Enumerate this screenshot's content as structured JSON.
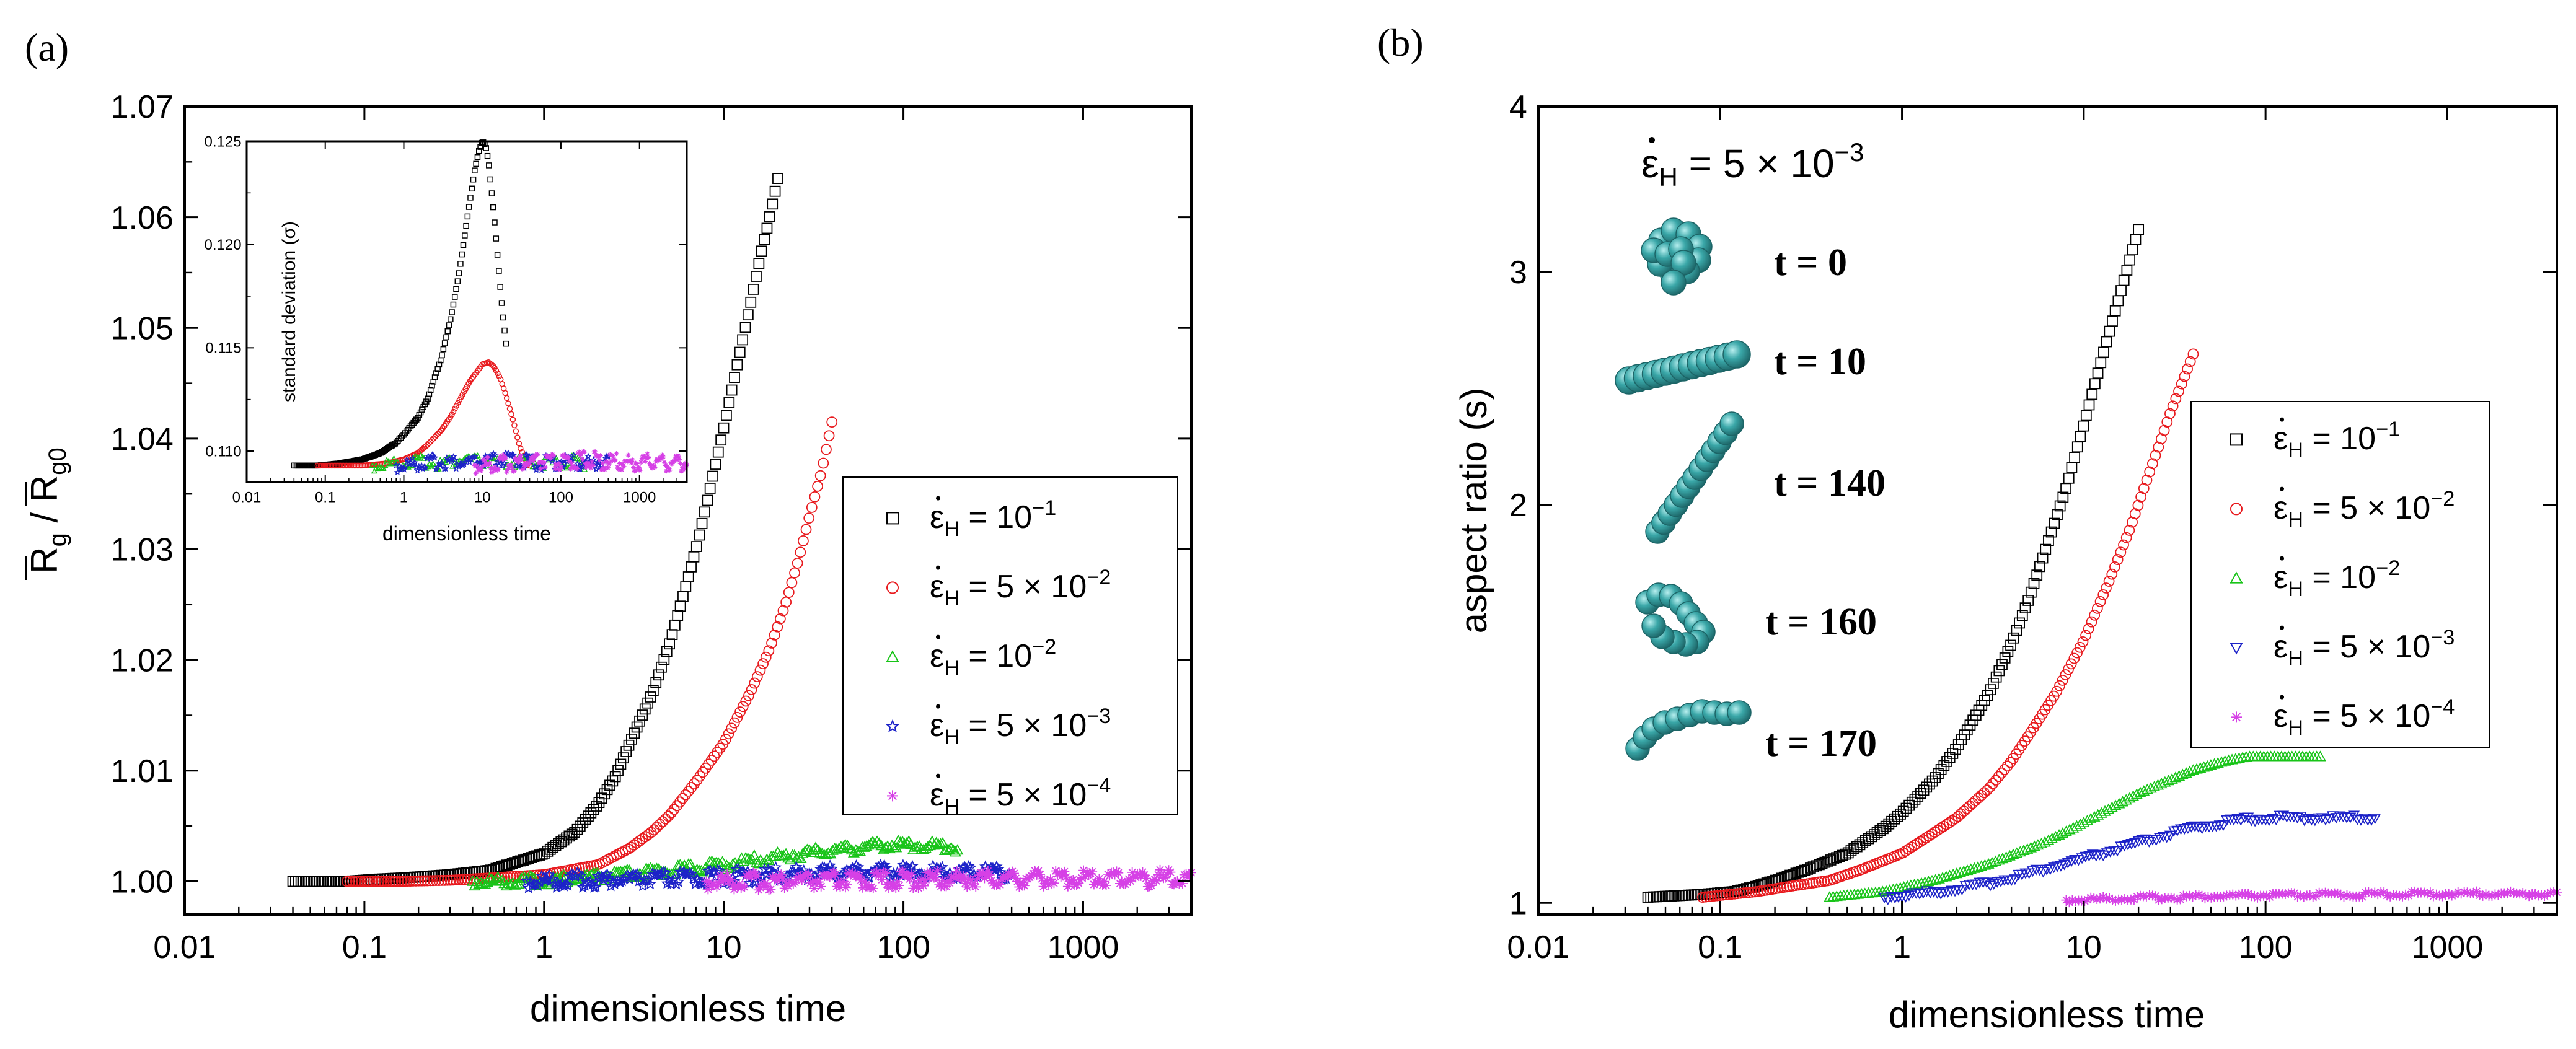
{
  "figure": {
    "panel_a_label": "(a)",
    "panel_b_label": "(b)"
  },
  "series_meta": [
    {
      "key": "e1",
      "color": "#000000",
      "marker": "square",
      "icon": "square-marker-icon"
    },
    {
      "key": "e2",
      "color": "#e8191d",
      "marker": "circle",
      "icon": "circle-marker-icon"
    },
    {
      "key": "e3",
      "color": "#19c419",
      "marker": "triangle",
      "icon": "triangle-marker-icon"
    },
    {
      "key": "e4",
      "color": "#1c22c8",
      "marker": "star",
      "icon": "star-marker-icon"
    },
    {
      "key": "e5",
      "color": "#d640e6",
      "marker": "asterisk",
      "icon": "asterisk-marker-icon"
    }
  ],
  "legend_entries": [
    {
      "prefix": "ε",
      "sub": "H",
      "mid": " = 10",
      "sup": "−1"
    },
    {
      "prefix": "ε",
      "sub": "H",
      "mid": " = 5 × 10",
      "sup": "−2"
    },
    {
      "prefix": "ε",
      "sub": "H",
      "mid": " = 10",
      "sup": "−2"
    },
    {
      "prefix": "ε",
      "sub": "H",
      "mid": " = 5 × 10",
      "sup": "−3"
    },
    {
      "prefix": "ε",
      "sub": "H",
      "mid": " = 5 × 10",
      "sup": "−4"
    }
  ],
  "chart_data": [
    {
      "id": "a-main",
      "type": "scatter",
      "title": "",
      "xlabel": "dimensionless time",
      "ylabel": {
        "base": "R",
        "sub1": "g",
        "sep": " / ",
        "base2": "R",
        "sub2": "g0"
      },
      "xscale": "log",
      "xlim": [
        0.01,
        4000
      ],
      "ylim": [
        0.997,
        1.07
      ],
      "xticks": [
        0.01,
        0.1,
        1,
        10,
        100,
        1000
      ],
      "xtick_labels": [
        "0.01",
        "0.1",
        "1",
        "10",
        "100",
        "1000"
      ],
      "yticks": [
        1.0,
        1.01,
        1.02,
        1.03,
        1.04,
        1.05,
        1.06,
        1.07
      ],
      "ytick_labels": [
        "1.00",
        "1.01",
        "1.02",
        "1.03",
        "1.04",
        "1.05",
        "1.06",
        "1.07"
      ],
      "legend_position": "center-right",
      "series": [
        {
          "name": "ε̇H = 10^-1",
          "x": [
            0.04,
            0.08,
            0.12,
            0.16,
            0.2,
            0.3,
            0.5,
            1,
            1.5,
            2,
            2.5,
            3,
            4,
            5,
            6,
            7,
            8,
            10,
            12,
            14,
            16,
            18,
            20
          ],
          "y": [
            1.0,
            1.0,
            1.0002,
            1.0003,
            1.0004,
            1.0006,
            1.001,
            1.0025,
            1.0045,
            1.007,
            1.0095,
            1.0125,
            1.017,
            1.0215,
            1.026,
            1.03,
            1.034,
            1.041,
            1.047,
            1.052,
            1.0565,
            1.06,
            1.0635
          ]
        },
        {
          "name": "ε̇H = 5×10^-2",
          "x": [
            0.08,
            0.16,
            0.3,
            0.5,
            1,
            2,
            3,
            4,
            5,
            7,
            10,
            14,
            18,
            22,
            26,
            30,
            35,
            40
          ],
          "y": [
            1.0,
            1.0,
            1.0001,
            1.0003,
            1.0006,
            1.0015,
            1.003,
            1.0045,
            1.006,
            1.009,
            1.0125,
            1.017,
            1.021,
            1.025,
            1.029,
            1.033,
            1.037,
            1.0415
          ]
        },
        {
          "name": "ε̇H = 10^-2",
          "x": [
            0.4,
            0.8,
            1,
            2,
            4,
            7,
            10,
            20,
            40,
            60,
            80,
            100,
            150,
            200
          ],
          "y": [
            1.0,
            1.0,
            1.0001,
            1.0004,
            1.0008,
            1.0012,
            1.0015,
            1.0022,
            1.0028,
            1.0031,
            1.0033,
            1.0033,
            1.0032,
            1.003
          ]
        },
        {
          "name": "ε̇H = 5×10^-3",
          "x": [
            0.8,
            1.6,
            3,
            5,
            10,
            20,
            40,
            70,
            100,
            150,
            200,
            300,
            400
          ],
          "y": [
            1.0,
            1.0001,
            1.0001,
            1.0002,
            1.0004,
            1.0006,
            1.0008,
            1.0009,
            1.0009,
            1.0008,
            1.0008,
            1.0009,
            1.0008
          ]
        },
        {
          "name": "ε̇H = 5×10^-4",
          "x": [
            8,
            16,
            40,
            80,
            160,
            300,
            600,
            1000,
            1600,
            2500,
            3500,
            4000
          ],
          "y": [
            1.0,
            1.0,
            1.0,
            1.0001,
            1.0002,
            1.0002,
            1.0003,
            1.0003,
            1.0003,
            1.0003,
            1.0002,
            1.0002
          ]
        }
      ]
    },
    {
      "id": "a-inset",
      "type": "scatter",
      "title": "",
      "xlabel": "dimensionless time",
      "ylabel": "standard deviation (σ)",
      "xscale": "log",
      "xlim": [
        0.01,
        4000
      ],
      "ylim": [
        0.1085,
        0.125
      ],
      "xticks": [
        0.01,
        0.1,
        1,
        10,
        100,
        1000
      ],
      "xtick_labels": [
        "0.01",
        "0.1",
        "1",
        "10",
        "100",
        "1000"
      ],
      "yticks": [
        0.11,
        0.115,
        0.12,
        0.125
      ],
      "ytick_labels": [
        "0.110",
        "0.115",
        "0.120",
        "0.125"
      ],
      "series": [
        {
          "name": "ε̇H = 10^-1",
          "x": [
            0.04,
            0.08,
            0.15,
            0.3,
            0.5,
            0.8,
            1,
            1.5,
            2,
            3,
            4,
            5,
            6,
            7,
            8,
            9,
            10,
            11,
            12,
            14,
            16,
            18,
            20
          ],
          "y": [
            0.1093,
            0.1093,
            0.1094,
            0.1096,
            0.1099,
            0.1104,
            0.1108,
            0.1116,
            0.1125,
            0.1145,
            0.1165,
            0.1185,
            0.1205,
            0.1222,
            0.1236,
            0.1245,
            0.125,
            0.1248,
            0.124,
            0.1215,
            0.119,
            0.1168,
            0.1152
          ]
        },
        {
          "name": "ε̇H = 5×10^-2",
          "x": [
            0.08,
            0.16,
            0.3,
            0.6,
            1,
            1.5,
            2,
            3,
            4,
            5,
            7,
            10,
            12,
            14,
            17,
            20,
            25,
            30,
            35,
            40
          ],
          "y": [
            0.1093,
            0.1093,
            0.1093,
            0.1094,
            0.1096,
            0.1099,
            0.1103,
            0.111,
            0.1117,
            0.1124,
            0.1134,
            0.1142,
            0.1143,
            0.1141,
            0.1135,
            0.1127,
            0.1114,
            0.1102,
            0.1096,
            0.1093
          ]
        },
        {
          "name": "ε̇H = 10^-2",
          "x": [
            0.4,
            0.8,
            1.5,
            3,
            6,
            10,
            20,
            40,
            80,
            150,
            200
          ],
          "y": [
            0.1093,
            0.1094,
            0.1095,
            0.1094,
            0.1096,
            0.1095,
            0.1094,
            0.1095,
            0.1094,
            0.1095,
            0.1094
          ]
        },
        {
          "name": "ε̇H = 5×10^-3",
          "x": [
            0.8,
            1.6,
            3,
            6,
            12,
            25,
            50,
            100,
            200,
            400
          ],
          "y": [
            0.1093,
            0.1094,
            0.1095,
            0.1094,
            0.1095,
            0.1096,
            0.1094,
            0.1095,
            0.1094,
            0.1095
          ]
        },
        {
          "name": "ε̇H = 5×10^-4",
          "x": [
            8,
            20,
            50,
            100,
            200,
            400,
            800,
            1500,
            3000,
            4000
          ],
          "y": [
            0.1093,
            0.1094,
            0.1095,
            0.1094,
            0.1096,
            0.1095,
            0.1094,
            0.1095,
            0.1094,
            0.1095
          ]
        }
      ]
    },
    {
      "id": "b-main",
      "type": "scatter",
      "title": "",
      "xlabel": "dimensionless time",
      "ylabel": "aspect ratio (s)",
      "xscale": "log",
      "yscale": "log",
      "xlim": [
        0.01,
        4000
      ],
      "ylim": [
        0.98,
        4
      ],
      "xticks": [
        0.01,
        0.1,
        1,
        10,
        100,
        1000
      ],
      "xtick_labels": [
        "0.01",
        "0.1",
        "1",
        "10",
        "100",
        "1000"
      ],
      "yticks": [
        1,
        2,
        3,
        4
      ],
      "ytick_labels": [
        "1",
        "2",
        "3",
        "4"
      ],
      "legend_position": "center-right",
      "series": [
        {
          "name": "ε̇H = 10^-1",
          "x": [
            0.04,
            0.08,
            0.12,
            0.16,
            0.2,
            0.3,
            0.5,
            0.8,
            1,
            1.5,
            2,
            3,
            4,
            5,
            6,
            8,
            10,
            12,
            14,
            16,
            18,
            20
          ],
          "y": [
            1.01,
            1.015,
            1.02,
            1.03,
            1.04,
            1.06,
            1.09,
            1.14,
            1.17,
            1.24,
            1.31,
            1.44,
            1.57,
            1.7,
            1.83,
            2.06,
            2.3,
            2.52,
            2.72,
            2.9,
            3.07,
            3.23
          ]
        },
        {
          "name": "ε̇H = 5×10^-2",
          "x": [
            0.08,
            0.16,
            0.25,
            0.4,
            0.6,
            1,
            1.5,
            2,
            3,
            4,
            5,
            7,
            10,
            14,
            18,
            22,
            26,
            30,
            35,
            40
          ],
          "y": [
            1.01,
            1.02,
            1.03,
            1.04,
            1.06,
            1.09,
            1.13,
            1.16,
            1.22,
            1.28,
            1.34,
            1.44,
            1.58,
            1.76,
            1.92,
            2.08,
            2.22,
            2.35,
            2.48,
            2.6
          ]
        },
        {
          "name": "ε̇H = 10^-2",
          "x": [
            0.4,
            0.8,
            1.5,
            3,
            6,
            10,
            20,
            40,
            60,
            80,
            100,
            150,
            200
          ],
          "y": [
            1.01,
            1.02,
            1.04,
            1.07,
            1.11,
            1.15,
            1.21,
            1.26,
            1.28,
            1.29,
            1.29,
            1.29,
            1.29
          ]
        },
        {
          "name": "ε̇H = 5×10^-3",
          "x": [
            0.8,
            1.6,
            3,
            6,
            10,
            20,
            40,
            70,
            100,
            150,
            200,
            300,
            400
          ],
          "y": [
            1.01,
            1.02,
            1.035,
            1.06,
            1.08,
            1.11,
            1.14,
            1.155,
            1.16,
            1.16,
            1.16,
            1.16,
            1.16
          ]
        },
        {
          "name": "ε̇H = 5×10^-4",
          "x": [
            8,
            16,
            30,
            60,
            100,
            200,
            400,
            800,
            1500,
            3000,
            4000
          ],
          "y": [
            1.005,
            1.008,
            1.01,
            1.012,
            1.013,
            1.014,
            1.015,
            1.016,
            1.016,
            1.016,
            1.016
          ]
        }
      ]
    }
  ],
  "panel_b_annotation": {
    "rate_prefix": "ε",
    "rate_sub": "H",
    "rate_mid": " = 5 × 10",
    "rate_sup": "−3",
    "snapshots": [
      "t = 0",
      "t = 10",
      "t = 140",
      "t = 160",
      "t = 170"
    ],
    "bead_color": "#3aa7a8",
    "bead_highlight": "#8fe0e0"
  }
}
